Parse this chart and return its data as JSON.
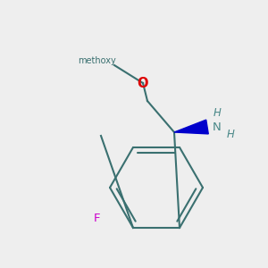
{
  "bg": "#eeeeee",
  "bond_color": "#3a7070",
  "bond_lw": 1.5,
  "wedge_color": "#0000cc",
  "O_color": "#dd0000",
  "F_color": "#cc00cc",
  "N_color": "#4a8888",
  "methoxy_text": "methoxy",
  "O_text": "O",
  "F_text": "F",
  "N_text": "N",
  "H_text": "H",
  "font_size_label": 8.5,
  "font_size_atom": 9.5
}
